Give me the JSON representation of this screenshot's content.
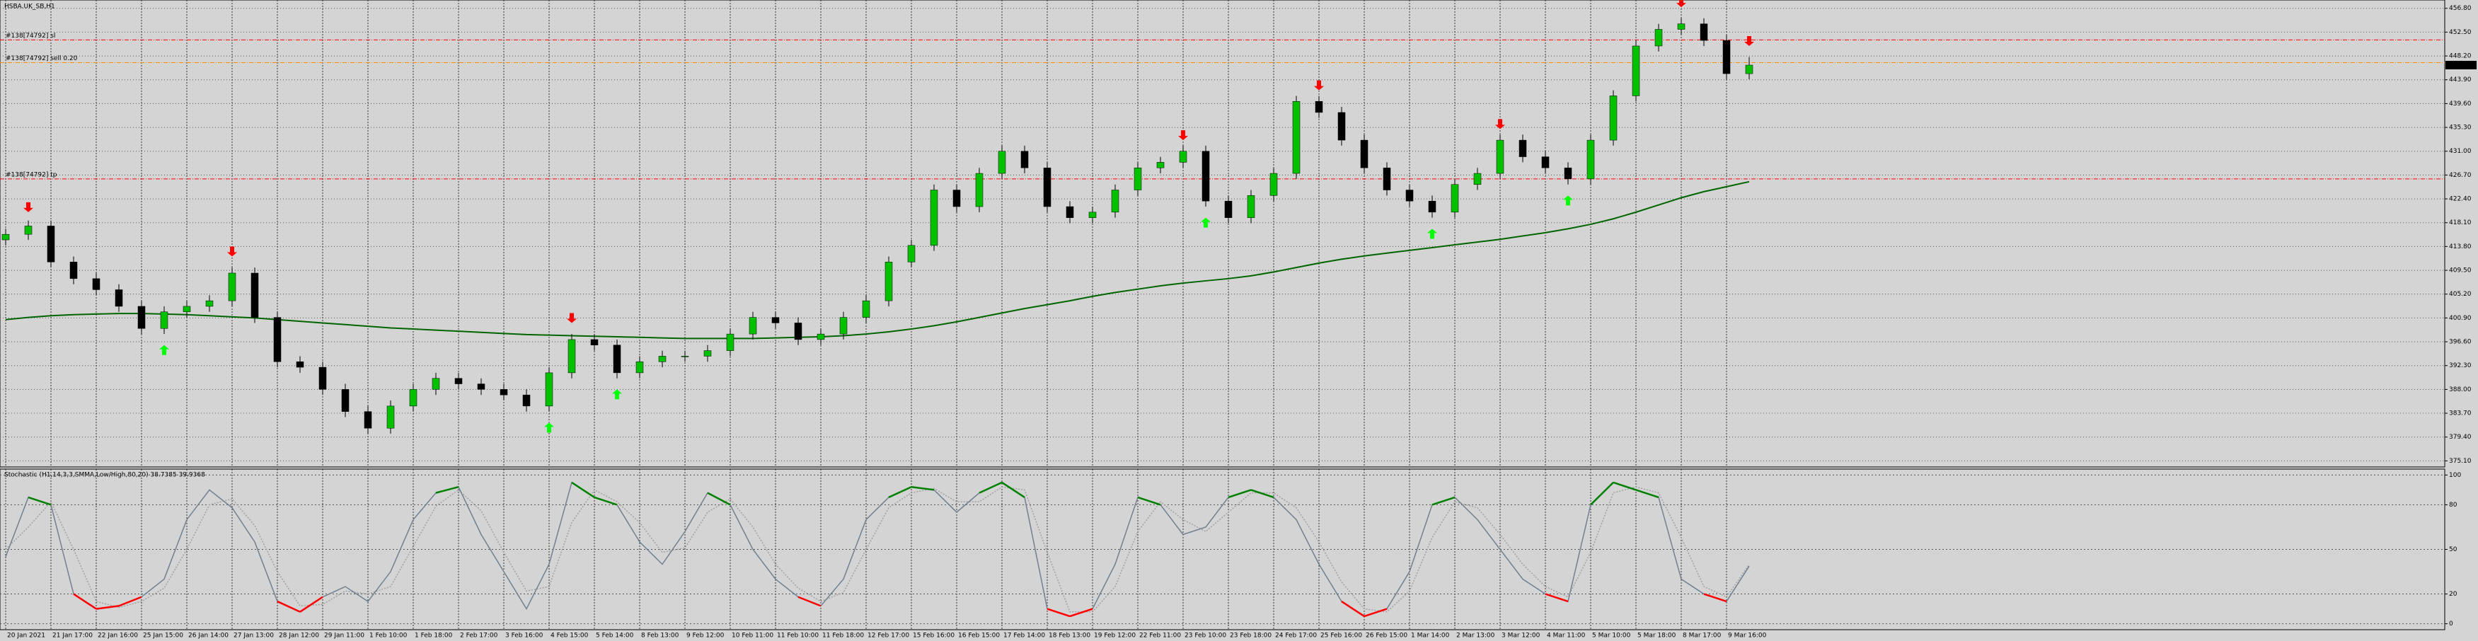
{
  "chart_data": [
    {
      "type": "candlestick",
      "title": "HSBA.UK_SB,H1",
      "categories": [
        "20 Jan 2021",
        null,
        "21 Jan 17:00",
        null,
        "22 Jan 16:00",
        null,
        "25 Jan 15:00",
        null,
        "26 Jan 14:00",
        null,
        "27 Jan 13:00",
        null,
        "28 Jan 12:00",
        null,
        "29 Jan 11:00",
        null,
        "1 Feb 10:00",
        null,
        "1 Feb 18:00",
        null,
        "2 Feb 17:00",
        null,
        "3 Feb 16:00",
        null,
        "4 Feb 15:00",
        null,
        "5 Feb 14:00",
        null,
        "8 Feb 13:00",
        null,
        "9 Feb 12:00",
        null,
        "10 Feb 11:00",
        null,
        "11 Feb 10:00",
        null,
        "11 Feb 18:00",
        null,
        "12 Feb 17:00",
        null,
        "15 Feb 16:00",
        null,
        "16 Feb 15:00",
        null,
        "17 Feb 14:00",
        null,
        "18 Feb 13:00",
        null,
        "19 Feb 12:00",
        null,
        "22 Feb 11:00",
        null,
        "23 Feb 10:00",
        null,
        "23 Feb 18:00",
        null,
        "24 Feb 17:00",
        null,
        "25 Feb 16:00",
        null,
        "26 Feb 15:00",
        null,
        "1 Mar 14:00",
        null,
        "2 Mar 13:00",
        null,
        "3 Mar 12:00",
        null,
        "4 Mar 11:00",
        null,
        "5 Mar 10:00",
        null,
        "5 Mar 18:00",
        null,
        "8 Mar 17:00",
        null,
        "9 Mar 16:00",
        null
      ],
      "open": [
        415,
        416,
        417.5,
        411,
        408,
        406,
        403,
        399,
        402,
        403,
        404,
        409,
        401,
        393,
        392,
        388,
        384,
        381,
        385,
        388,
        390,
        389,
        388,
        387,
        385,
        391,
        397,
        396,
        391,
        393,
        394,
        394,
        395,
        398,
        401,
        400,
        397,
        398,
        401,
        404,
        411,
        414,
        424,
        421,
        427,
        431,
        428,
        421,
        419,
        420,
        424,
        428,
        429,
        431,
        422,
        419,
        423,
        427,
        440,
        438,
        433,
        428,
        424,
        422,
        420,
        425,
        427,
        433,
        430,
        428,
        426,
        433,
        441,
        450,
        453,
        454,
        451,
        445
      ],
      "high": [
        417,
        418.5,
        418.5,
        412,
        409,
        407,
        404,
        403,
        404,
        405,
        410,
        410,
        402,
        394,
        393,
        389,
        385,
        386,
        389,
        391,
        391,
        390,
        389,
        388,
        392,
        398,
        398,
        397,
        394,
        395,
        395,
        396,
        399,
        402,
        402,
        401,
        399,
        402,
        405,
        412,
        415,
        425,
        425,
        428,
        432,
        432,
        429,
        422,
        421,
        425,
        429,
        430,
        432,
        432,
        423,
        424,
        428,
        441,
        441,
        439,
        434,
        429,
        425,
        423,
        426,
        428,
        434,
        434,
        431,
        429,
        434,
        442,
        451,
        454,
        455,
        455,
        452,
        448
      ],
      "low": [
        414,
        415,
        410,
        407,
        405,
        402,
        398,
        398,
        401,
        402,
        403,
        400,
        392,
        391,
        387,
        383,
        380,
        380,
        384,
        387,
        388,
        387,
        386,
        384,
        384,
        390,
        395,
        390,
        390,
        392,
        393,
        393,
        394,
        397,
        399,
        396,
        396,
        397,
        400,
        403,
        410,
        413,
        420,
        420,
        426,
        427,
        420,
        418,
        418,
        419,
        423,
        427,
        428,
        421,
        418,
        418,
        422,
        426,
        437,
        432,
        427,
        423,
        421,
        419,
        419,
        424,
        426,
        429,
        427,
        425,
        425,
        432,
        440,
        449,
        452,
        450,
        444,
        444
      ],
      "close": [
        416,
        417.5,
        411,
        408,
        406,
        403,
        399,
        402,
        403,
        404,
        409,
        401,
        393,
        392,
        388,
        384,
        381,
        385,
        388,
        390,
        389,
        388,
        387,
        385,
        391,
        397,
        396,
        391,
        393,
        394,
        394,
        395,
        398,
        401,
        400,
        397,
        398,
        401,
        404,
        411,
        414,
        424,
        421,
        427,
        431,
        428,
        421,
        419,
        420,
        424,
        428,
        429,
        431,
        422,
        419,
        423,
        427,
        440,
        438,
        433,
        428,
        424,
        422,
        420,
        425,
        427,
        433,
        430,
        428,
        426,
        433,
        441,
        450,
        453,
        454,
        451,
        445,
        446.55
      ],
      "up_color": "#00c000",
      "down_color": "#000000",
      "ma": {
        "color": "#006400",
        "values": [
          400.6,
          401,
          401.3,
          401.5,
          401.6,
          401.7,
          401.7,
          401.6,
          401.5,
          401.3,
          401.1,
          400.9,
          400.6,
          400.3,
          400,
          399.7,
          399.4,
          399.1,
          398.9,
          398.7,
          398.5,
          398.3,
          398.1,
          397.9,
          397.8,
          397.7,
          397.6,
          397.5,
          397.4,
          397.3,
          397.2,
          397.2,
          397.2,
          397.2,
          397.3,
          397.4,
          397.5,
          397.7,
          398,
          398.4,
          398.9,
          399.5,
          400.2,
          401,
          401.8,
          402.6,
          403.3,
          404,
          404.8,
          405.5,
          406.1,
          406.7,
          407.2,
          407.6,
          408,
          408.5,
          409.2,
          410,
          410.8,
          411.5,
          412.1,
          412.6,
          413.1,
          413.6,
          414.1,
          414.6,
          415.1,
          415.7,
          416.3,
          417,
          417.8,
          418.8,
          420,
          421.3,
          422.6,
          423.7,
          424.6,
          425.5
        ]
      },
      "sell_arrows": {
        "color": "#ff0000",
        "values": [
          null,
          420,
          null,
          null,
          null,
          null,
          null,
          null,
          null,
          null,
          412,
          null,
          null,
          null,
          null,
          null,
          null,
          null,
          null,
          null,
          null,
          null,
          null,
          null,
          null,
          400,
          null,
          null,
          null,
          null,
          null,
          null,
          null,
          null,
          null,
          null,
          null,
          null,
          null,
          null,
          null,
          null,
          null,
          null,
          null,
          null,
          null,
          null,
          null,
          null,
          null,
          null,
          433,
          null,
          null,
          null,
          null,
          null,
          442,
          null,
          null,
          null,
          null,
          null,
          null,
          null,
          435,
          null,
          null,
          null,
          null,
          null,
          null,
          null,
          457,
          null,
          null,
          450
        ]
      },
      "buy_arrows": {
        "color": "#00ff00",
        "values": [
          null,
          null,
          null,
          null,
          null,
          null,
          null,
          396,
          null,
          null,
          null,
          null,
          null,
          null,
          null,
          null,
          null,
          null,
          null,
          null,
          null,
          null,
          null,
          null,
          382,
          null,
          null,
          388,
          null,
          null,
          null,
          null,
          null,
          null,
          null,
          null,
          null,
          null,
          null,
          null,
          null,
          null,
          null,
          null,
          null,
          null,
          null,
          null,
          null,
          null,
          null,
          null,
          null,
          419,
          null,
          null,
          null,
          null,
          null,
          null,
          null,
          null,
          null,
          417,
          null,
          null,
          null,
          null,
          null,
          423,
          null,
          null,
          null,
          null,
          null,
          null,
          null,
          null
        ]
      },
      "levels": [
        {
          "label": "#138[74792] sl",
          "value": 451.1,
          "color": "#ff0000"
        },
        {
          "label": "#138[74792] sell 0.20",
          "value": 447.0,
          "color": "#ff8c00"
        },
        {
          "label": "#138[74792] tp",
          "value": 426.0,
          "color": "#ff0000"
        }
      ],
      "ylim": [
        374.0,
        458.3
      ],
      "yticks": [
        {
          "value": 456.8,
          "label": "456.80"
        },
        {
          "value": 452.5,
          "label": "452.50"
        },
        {
          "value": 448.2,
          "label": "448.20"
        },
        {
          "value": 443.9,
          "label": "443.90"
        },
        {
          "value": 439.6,
          "label": "439.60"
        },
        {
          "value": 435.3,
          "label": "435.30"
        },
        {
          "value": 431.0,
          "label": "431.00"
        },
        {
          "value": 426.7,
          "label": "426.70"
        },
        {
          "value": 422.4,
          "label": "422.40"
        },
        {
          "value": 418.1,
          "label": "418.10"
        },
        {
          "value": 413.8,
          "label": "413.80"
        },
        {
          "value": 409.5,
          "label": "409.50"
        },
        {
          "value": 405.2,
          "label": "405.20"
        },
        {
          "value": 400.9,
          "label": "400.90"
        },
        {
          "value": 396.6,
          "label": "396.60"
        },
        {
          "value": 392.3,
          "label": "392.30"
        },
        {
          "value": 388.0,
          "label": "388.00"
        },
        {
          "value": 383.7,
          "label": "383.70"
        },
        {
          "value": 379.4,
          "label": "379.40"
        },
        {
          "value": 375.1,
          "label": "375.10"
        }
      ],
      "grid": true
    },
    {
      "type": "line",
      "title": "Stochastic (H1,14,3,3,SMMA,Low/High,80,20) 38.7385 39.9368",
      "main": {
        "color": "#708090",
        "high_color": "#008000",
        "low_color": "#ff0000",
        "values": [
          45,
          85,
          80,
          20,
          10,
          12,
          18,
          30,
          70,
          90,
          78,
          55,
          15,
          8,
          18,
          25,
          15,
          35,
          70,
          88,
          92,
          60,
          35,
          10,
          40,
          95,
          85,
          80,
          55,
          40,
          62,
          88,
          80,
          50,
          30,
          18,
          12,
          30,
          70,
          85,
          92,
          90,
          75,
          88,
          95,
          85,
          10,
          5,
          10,
          40,
          85,
          80,
          60,
          65,
          85,
          90,
          85,
          70,
          40,
          15,
          5,
          10,
          35,
          80,
          85,
          70,
          50,
          30,
          20,
          15,
          80,
          95,
          90,
          85,
          30,
          20,
          15,
          38.7385
        ]
      },
      "signal": {
        "color": "#a0a0a0",
        "values": [
          50,
          65,
          82,
          50,
          15,
          11,
          15,
          24,
          50,
          80,
          84,
          66,
          35,
          12,
          13,
          22,
          20,
          25,
          52,
          79,
          90,
          76,
          48,
          22,
          25,
          68,
          90,
          82,
          68,
          48,
          51,
          75,
          84,
          65,
          40,
          24,
          15,
          21,
          50,
          78,
          88,
          91,
          82,
          82,
          92,
          90,
          48,
          8,
          8,
          25,
          62,
          82,
          70,
          62,
          75,
          88,
          88,
          78,
          55,
          28,
          10,
          8,
          22,
          58,
          82,
          78,
          60,
          40,
          25,
          18,
          48,
          88,
          92,
          88,
          58,
          25,
          18,
          39.9368
        ]
      },
      "ylim": [
        -4,
        104
      ],
      "yticks": [
        0,
        20,
        50,
        80,
        100
      ],
      "grid": true
    }
  ]
}
